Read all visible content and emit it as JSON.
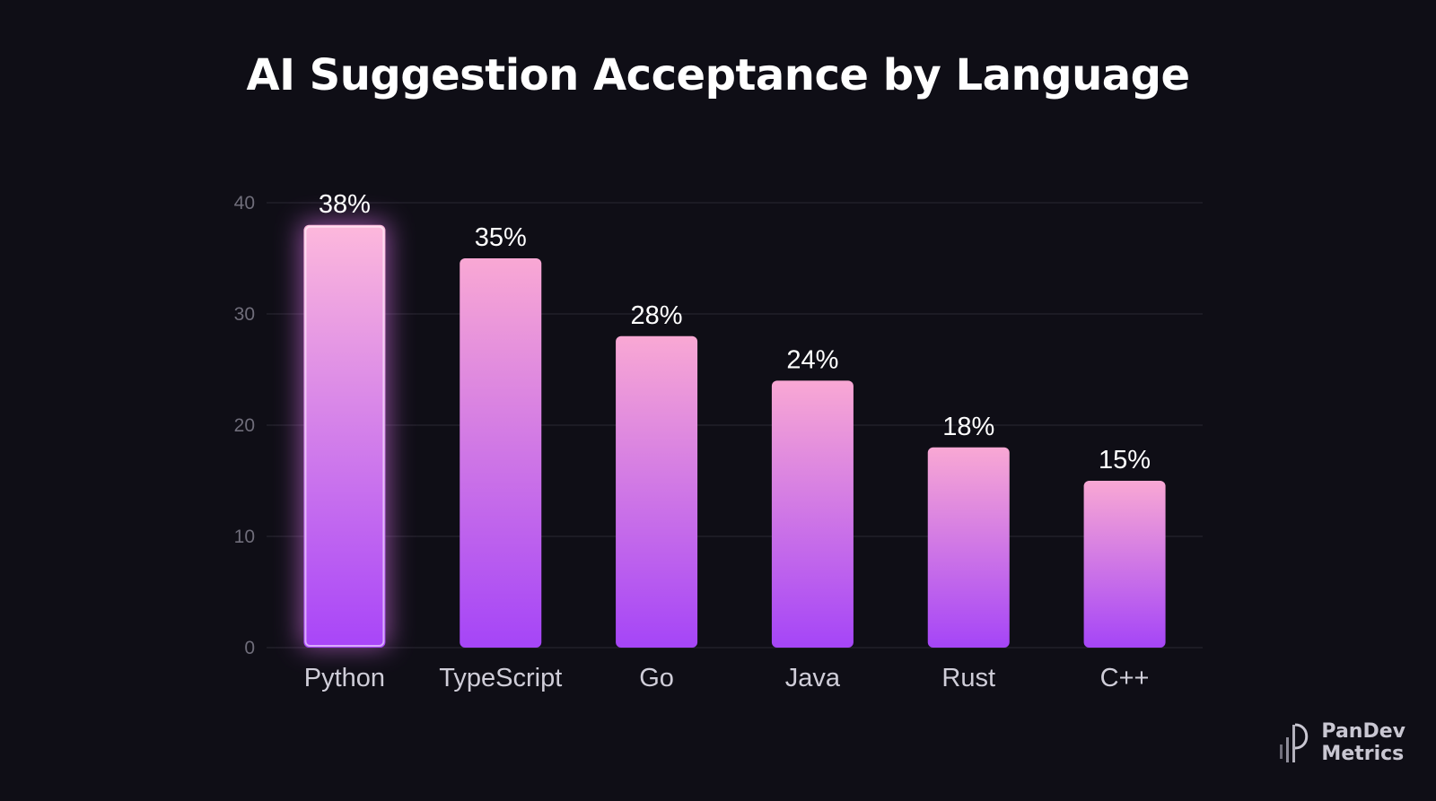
{
  "chart_data": {
    "type": "bar",
    "title": "AI Suggestion Acceptance by Language",
    "categories": [
      "Python",
      "TypeScript",
      "Go",
      "Java",
      "Rust",
      "C++"
    ],
    "values": [
      38,
      35,
      28,
      24,
      18,
      15
    ],
    "value_labels": [
      "38%",
      "35%",
      "28%",
      "24%",
      "18%",
      "15%"
    ],
    "xlabel": "",
    "ylabel": "",
    "ylim": [
      0,
      40
    ],
    "yticks": [
      0,
      10,
      20,
      30,
      40
    ],
    "grid": true,
    "highlighted_category": "Python",
    "colors": {
      "bar_top": "#f9a8d4",
      "bar_bottom": "#a545f7",
      "glow": "#e879f9",
      "background": "#0f0e16",
      "gridline": "#2a2833"
    }
  },
  "brand": {
    "line1": "PanDev",
    "line2": "Metrics",
    "icon": "pandev-logo-icon"
  }
}
